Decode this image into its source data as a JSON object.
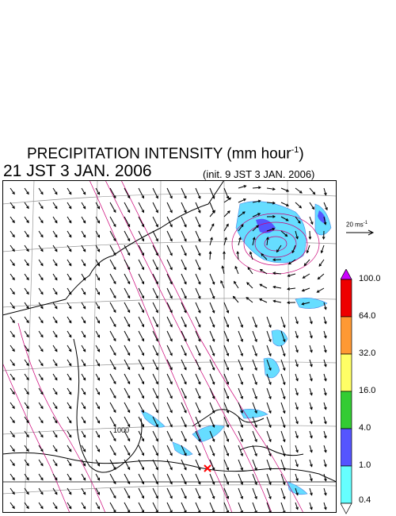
{
  "header": {
    "title_main": "PRECIPITATION INTENSITY (mm hour",
    "title_sup": "-1",
    "title_close": ")",
    "valid_time": "21 JST 3 JAN. 2006",
    "init_time": "(init. 9 JST 3 JAN. 2006)"
  },
  "map": {
    "contour_label": "1000",
    "marker_color": "#ff0000",
    "contour_color": "#cc0077",
    "precip_color": "#66ddff"
  },
  "vector_scale": {
    "label": "20 ms",
    "sup": "-1"
  },
  "legend": {
    "colors": [
      "#66ffff",
      "#5555ff",
      "#33cc33",
      "#ffff66",
      "#ff9933",
      "#ee0000"
    ],
    "top_arrow_color": "#cc00ff",
    "bottom_arrow_color": "#ffffff",
    "labels": [
      "100.0",
      "64.0",
      "32.0",
      "16.0",
      "4.0",
      "1.0",
      "0.4"
    ]
  }
}
